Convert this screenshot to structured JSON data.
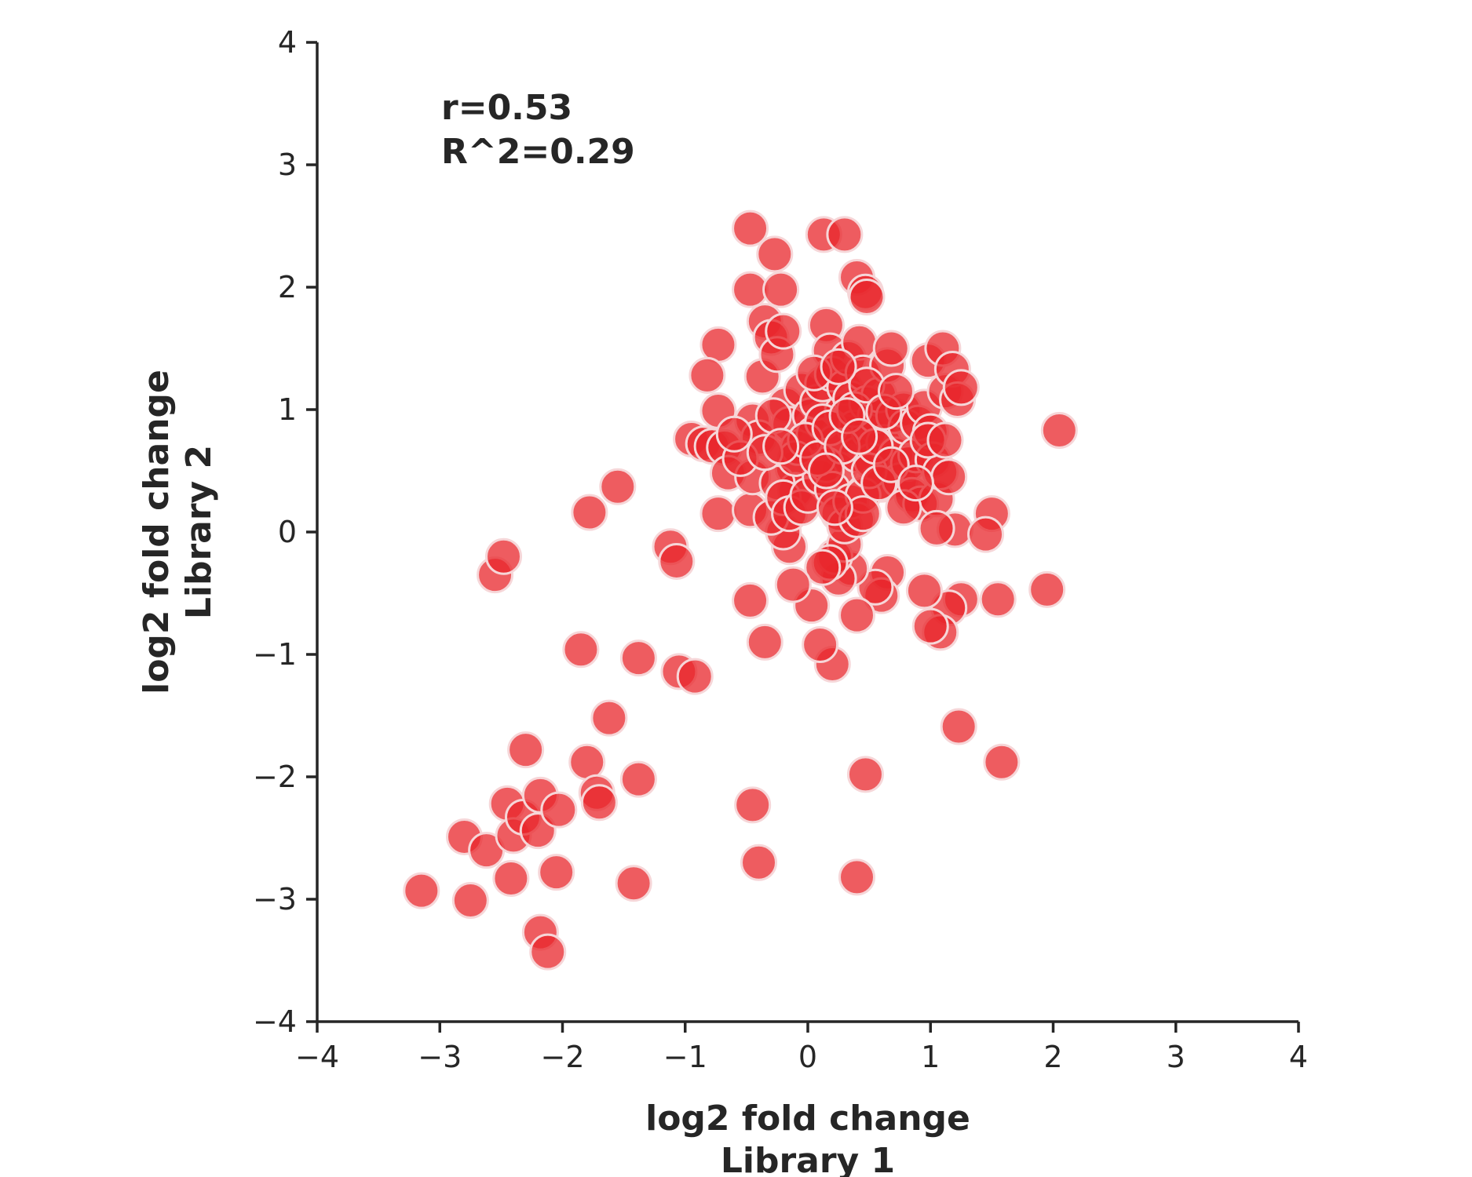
{
  "chart_data": {
    "type": "scatter",
    "title": "",
    "xlabel_lines": [
      "log2 fold change",
      "Library 1"
    ],
    "ylabel_lines": [
      "log2 fold change",
      "Library 2"
    ],
    "xlim": [
      -4,
      4
    ],
    "ylim": [
      -4,
      4
    ],
    "xticks": [
      -4,
      -3,
      -2,
      -1,
      0,
      1,
      2,
      3,
      4
    ],
    "yticks": [
      -4,
      -3,
      -2,
      -1,
      0,
      1,
      2,
      3,
      4
    ],
    "xtick_labels": [
      "−4",
      "−3",
      "−2",
      "−1",
      "0",
      "1",
      "2",
      "3",
      "4"
    ],
    "ytick_labels": [
      "−4",
      "−3",
      "−2",
      "−1",
      "0",
      "1",
      "2",
      "3",
      "4"
    ],
    "annotations": [
      "r=0.53",
      "R^2=0.29"
    ],
    "grid": false,
    "legend": "none",
    "marker_color": "#e8262b",
    "marker_edge_color": "#f6d6d8",
    "points": [
      [
        -3.15,
        -2.93
      ],
      [
        -2.75,
        -3.01
      ],
      [
        -2.8,
        -2.49
      ],
      [
        -2.62,
        -2.6
      ],
      [
        -2.55,
        -0.35
      ],
      [
        -2.48,
        -0.2
      ],
      [
        -2.45,
        -2.22
      ],
      [
        -2.42,
        -2.83
      ],
      [
        -2.4,
        -2.48
      ],
      [
        -2.32,
        -2.33
      ],
      [
        -2.3,
        -1.78
      ],
      [
        -2.18,
        -3.27
      ],
      [
        -2.12,
        -3.43
      ],
      [
        -2.2,
        -2.44
      ],
      [
        -2.18,
        -2.15
      ],
      [
        -2.03,
        -2.27
      ],
      [
        -2.05,
        -2.78
      ],
      [
        -1.85,
        -0.96
      ],
      [
        -1.8,
        -1.88
      ],
      [
        -1.78,
        0.16
      ],
      [
        -1.72,
        -2.13
      ],
      [
        -1.7,
        -2.21
      ],
      [
        -1.62,
        -1.52
      ],
      [
        -1.55,
        0.37
      ],
      [
        -1.38,
        -2.02
      ],
      [
        -1.38,
        -1.03
      ],
      [
        -1.42,
        -2.87
      ],
      [
        -1.12,
        -0.12
      ],
      [
        -1.07,
        -0.24
      ],
      [
        -1.05,
        -1.14
      ],
      [
        -0.92,
        -1.18
      ],
      [
        -0.45,
        -2.23
      ],
      [
        -0.4,
        -2.7
      ],
      [
        0.4,
        -2.82
      ],
      [
        0.47,
        -1.98
      ],
      [
        1.23,
        -1.59
      ],
      [
        1.58,
        -1.88
      ],
      [
        -0.47,
        2.48
      ],
      [
        -0.27,
        2.27
      ],
      [
        0.13,
        2.43
      ],
      [
        0.3,
        2.43
      ],
      [
        0.4,
        2.08
      ],
      [
        0.47,
        1.96
      ],
      [
        0.48,
        1.92
      ],
      [
        -0.47,
        1.98
      ],
      [
        -0.22,
        1.98
      ],
      [
        -0.73,
        1.53
      ],
      [
        -0.82,
        1.28
      ],
      [
        -0.73,
        0.99
      ],
      [
        -0.95,
        0.76
      ],
      [
        -0.85,
        0.72
      ],
      [
        -0.78,
        0.7
      ],
      [
        -0.68,
        0.69
      ],
      [
        -0.73,
        0.15
      ],
      [
        -0.65,
        0.48
      ],
      [
        -0.47,
        0.18
      ],
      [
        -0.45,
        0.91
      ],
      [
        -0.4,
        0.77
      ],
      [
        -0.37,
        1.27
      ],
      [
        -0.35,
        1.72
      ],
      [
        -0.3,
        1.59
      ],
      [
        -0.25,
        1.45
      ],
      [
        -0.2,
        1.64
      ],
      [
        -0.18,
        1.04
      ],
      [
        -0.15,
        0.88
      ],
      [
        -0.12,
        0.52
      ],
      [
        -0.1,
        0.34
      ],
      [
        -0.08,
        0.69
      ],
      [
        -0.05,
        1.16
      ],
      [
        0.02,
        0.95
      ],
      [
        0.05,
        0.8
      ],
      [
        0.08,
        1.06
      ],
      [
        0.12,
        1.21
      ],
      [
        0.15,
        1.69
      ],
      [
        0.18,
        1.48
      ],
      [
        0.2,
        1.29
      ],
      [
        0.22,
        0.73
      ],
      [
        0.25,
        0.51
      ],
      [
        0.28,
        0.98
      ],
      [
        0.3,
        1.18
      ],
      [
        0.33,
        1.42
      ],
      [
        0.35,
        1.09
      ],
      [
        0.38,
        0.85
      ],
      [
        0.4,
        0.63
      ],
      [
        0.42,
        1.55
      ],
      [
        0.45,
        1.3
      ],
      [
        0.48,
        1.05
      ],
      [
        0.5,
        0.82
      ],
      [
        0.52,
        0.58
      ],
      [
        0.55,
        0.95
      ],
      [
        0.58,
        1.12
      ],
      [
        0.6,
        0.39
      ],
      [
        0.62,
        0.73
      ],
      [
        0.65,
        1.36
      ],
      [
        0.68,
        1.5
      ],
      [
        0.7,
        0.95
      ],
      [
        0.72,
        0.63
      ],
      [
        0.75,
        0.42
      ],
      [
        0.78,
        1.0
      ],
      [
        0.8,
        0.86
      ],
      [
        0.82,
        0.56
      ],
      [
        0.85,
        0.3
      ],
      [
        0.88,
        0.63
      ],
      [
        0.9,
        0.89
      ],
      [
        0.92,
        0.23
      ],
      [
        0.95,
        1.02
      ],
      [
        0.98,
        1.4
      ],
      [
        1.0,
        0.82
      ],
      [
        1.02,
        0.59
      ],
      [
        1.05,
        0.27
      ],
      [
        1.08,
        0.49
      ],
      [
        1.1,
        1.5
      ],
      [
        1.12,
        1.15
      ],
      [
        1.15,
        0.45
      ],
      [
        1.18,
        1.33
      ],
      [
        1.2,
        0.02
      ],
      [
        1.22,
        1.08
      ],
      [
        1.25,
        1.18
      ],
      [
        1.05,
        0.03
      ],
      [
        1.5,
        0.15
      ],
      [
        1.45,
        -0.02
      ],
      [
        2.05,
        0.83
      ],
      [
        1.95,
        -0.47
      ],
      [
        1.55,
        -0.55
      ],
      [
        1.25,
        -0.55
      ],
      [
        1.15,
        -0.62
      ],
      [
        1.08,
        -0.82
      ],
      [
        1.0,
        -0.77
      ],
      [
        0.95,
        -0.48
      ],
      [
        0.65,
        -0.33
      ],
      [
        0.6,
        -0.52
      ],
      [
        0.55,
        -0.45
      ],
      [
        0.4,
        -0.68
      ],
      [
        0.35,
        -0.3
      ],
      [
        0.25,
        -0.38
      ],
      [
        0.22,
        -0.2
      ],
      [
        0.3,
        -0.1
      ],
      [
        0.18,
        -0.25
      ],
      [
        0.12,
        -0.29
      ],
      [
        0.2,
        -1.08
      ],
      [
        0.1,
        -0.92
      ],
      [
        0.03,
        -0.6
      ],
      [
        -0.12,
        -0.43
      ],
      [
        -0.35,
        -0.9
      ],
      [
        -0.47,
        -0.56
      ],
      [
        -0.15,
        -0.12
      ],
      [
        -0.2,
        0.0
      ],
      [
        -0.3,
        0.12
      ],
      [
        -0.45,
        0.45
      ],
      [
        -0.25,
        0.4
      ],
      [
        -0.2,
        0.28
      ],
      [
        -0.15,
        0.15
      ],
      [
        -0.05,
        0.2
      ],
      [
        0.0,
        0.3
      ],
      [
        0.1,
        0.45
      ],
      [
        0.15,
        0.55
      ],
      [
        0.2,
        0.35
      ],
      [
        0.25,
        0.15
      ],
      [
        0.3,
        0.05
      ],
      [
        0.35,
        0.25
      ],
      [
        0.4,
        0.1
      ],
      [
        0.45,
        0.3
      ],
      [
        0.5,
        0.5
      ],
      [
        0.55,
        0.7
      ],
      [
        0.45,
        0.15
      ],
      [
        0.12,
        0.9
      ],
      [
        0.05,
        1.3
      ],
      [
        -0.1,
        0.6
      ],
      [
        -0.02,
        0.75
      ],
      [
        0.08,
        0.6
      ],
      [
        0.18,
        0.85
      ],
      [
        0.28,
        0.7
      ],
      [
        0.38,
        1.0
      ],
      [
        0.48,
        1.2
      ],
      [
        0.58,
        0.4
      ],
      [
        0.68,
        0.55
      ],
      [
        0.78,
        0.2
      ],
      [
        0.88,
        0.4
      ],
      [
        0.98,
        0.75
      ],
      [
        1.12,
        0.75
      ],
      [
        -0.55,
        0.6
      ],
      [
        -0.6,
        0.8
      ],
      [
        -0.35,
        0.65
      ],
      [
        -0.28,
        0.95
      ],
      [
        -0.22,
        0.7
      ],
      [
        0.25,
        1.35
      ],
      [
        0.32,
        0.95
      ],
      [
        0.42,
        0.78
      ],
      [
        0.62,
        0.98
      ],
      [
        0.72,
        1.15
      ],
      [
        0.15,
        0.5
      ],
      [
        0.22,
        0.2
      ]
    ]
  }
}
